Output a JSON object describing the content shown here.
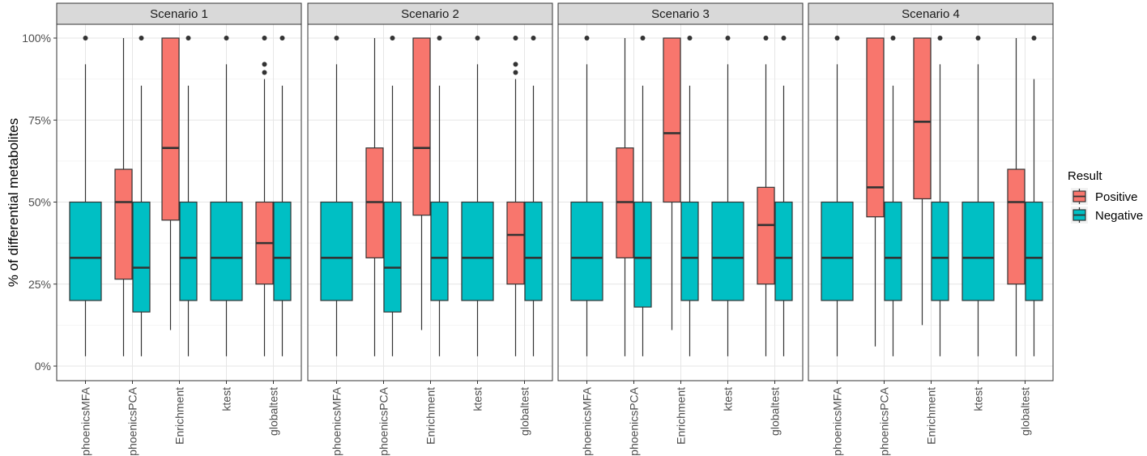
{
  "chart_data": {
    "type": "boxplot",
    "ylabel": "% of differential metabolites",
    "xlabel": "",
    "ylim": [
      0,
      100
    ],
    "y_ticks": [
      0,
      25,
      50,
      75,
      100
    ],
    "y_tick_labels": [
      "0%",
      "25%",
      "50%",
      "75%",
      "100%"
    ],
    "categories": [
      "phoenicsMFA",
      "phoenicsPCA",
      "Enrichment",
      "ktest",
      "globaltest"
    ],
    "legend": {
      "title": "Result",
      "entries": [
        {
          "name": "Positive",
          "color": "#F8766D"
        },
        {
          "name": "Negative",
          "color": "#00BFC4"
        }
      ],
      "position": "right"
    },
    "facets": [
      {
        "title": "Scenario 1",
        "boxes": [
          {
            "category": "phoenicsMFA",
            "group": "Negative",
            "lo": 3,
            "q1": 20,
            "med": 33,
            "q3": 50,
            "hi": 92,
            "outliers": [
              100
            ]
          },
          {
            "category": "phoenicsPCA",
            "group": "Positive",
            "lo": 3,
            "q1": 26.5,
            "med": 50,
            "q3": 60,
            "hi": 100,
            "outliers": []
          },
          {
            "category": "phoenicsPCA",
            "group": "Negative",
            "lo": 3,
            "q1": 16.5,
            "med": 30,
            "q3": 50,
            "hi": 85.5,
            "outliers": [
              100
            ]
          },
          {
            "category": "Enrichment",
            "group": "Positive",
            "lo": 11,
            "q1": 44.5,
            "med": 66.5,
            "q3": 100,
            "hi": 100,
            "outliers": []
          },
          {
            "category": "Enrichment",
            "group": "Negative",
            "lo": 3,
            "q1": 20,
            "med": 33,
            "q3": 50,
            "hi": 85.5,
            "outliers": [
              100
            ]
          },
          {
            "category": "ktest",
            "group": "Negative",
            "lo": 3,
            "q1": 20,
            "med": 33,
            "q3": 50,
            "hi": 92,
            "outliers": [
              100
            ]
          },
          {
            "category": "globaltest",
            "group": "Positive",
            "lo": 3,
            "q1": 25,
            "med": 37.5,
            "q3": 50,
            "hi": 87.5,
            "outliers": [
              89.5,
              92,
              100
            ]
          },
          {
            "category": "globaltest",
            "group": "Negative",
            "lo": 3,
            "q1": 20,
            "med": 33,
            "q3": 50,
            "hi": 85.5,
            "outliers": [
              100
            ]
          }
        ]
      },
      {
        "title": "Scenario 2",
        "boxes": [
          {
            "category": "phoenicsMFA",
            "group": "Negative",
            "lo": 3,
            "q1": 20,
            "med": 33,
            "q3": 50,
            "hi": 92,
            "outliers": [
              100
            ]
          },
          {
            "category": "phoenicsPCA",
            "group": "Positive",
            "lo": 3,
            "q1": 33,
            "med": 50,
            "q3": 66.5,
            "hi": 100,
            "outliers": []
          },
          {
            "category": "phoenicsPCA",
            "group": "Negative",
            "lo": 3,
            "q1": 16.5,
            "med": 30,
            "q3": 50,
            "hi": 85.5,
            "outliers": [
              100
            ]
          },
          {
            "category": "Enrichment",
            "group": "Positive",
            "lo": 11,
            "q1": 46,
            "med": 66.5,
            "q3": 100,
            "hi": 100,
            "outliers": []
          },
          {
            "category": "Enrichment",
            "group": "Negative",
            "lo": 3,
            "q1": 20,
            "med": 33,
            "q3": 50,
            "hi": 85.5,
            "outliers": [
              100
            ]
          },
          {
            "category": "ktest",
            "group": "Negative",
            "lo": 3,
            "q1": 20,
            "med": 33,
            "q3": 50,
            "hi": 92,
            "outliers": [
              100
            ]
          },
          {
            "category": "globaltest",
            "group": "Positive",
            "lo": 3,
            "q1": 25,
            "med": 40,
            "q3": 50,
            "hi": 87.5,
            "outliers": [
              89.5,
              92,
              100
            ]
          },
          {
            "category": "globaltest",
            "group": "Negative",
            "lo": 3,
            "q1": 20,
            "med": 33,
            "q3": 50,
            "hi": 85.5,
            "outliers": [
              100
            ]
          }
        ]
      },
      {
        "title": "Scenario 3",
        "boxes": [
          {
            "category": "phoenicsMFA",
            "group": "Negative",
            "lo": 3,
            "q1": 20,
            "med": 33,
            "q3": 50,
            "hi": 92,
            "outliers": [
              100
            ]
          },
          {
            "category": "phoenicsPCA",
            "group": "Positive",
            "lo": 3,
            "q1": 33,
            "med": 50,
            "q3": 66.5,
            "hi": 100,
            "outliers": []
          },
          {
            "category": "phoenicsPCA",
            "group": "Negative",
            "lo": 3,
            "q1": 18,
            "med": 33,
            "q3": 50,
            "hi": 85.5,
            "outliers": [
              100
            ]
          },
          {
            "category": "Enrichment",
            "group": "Positive",
            "lo": 11,
            "q1": 50,
            "med": 71,
            "q3": 100,
            "hi": 100,
            "outliers": []
          },
          {
            "category": "Enrichment",
            "group": "Negative",
            "lo": 3,
            "q1": 20,
            "med": 33,
            "q3": 50,
            "hi": 85.5,
            "outliers": [
              100
            ]
          },
          {
            "category": "ktest",
            "group": "Negative",
            "lo": 3,
            "q1": 20,
            "med": 33,
            "q3": 50,
            "hi": 92,
            "outliers": [
              100
            ]
          },
          {
            "category": "globaltest",
            "group": "Positive",
            "lo": 3,
            "q1": 25,
            "med": 43,
            "q3": 54.5,
            "hi": 92,
            "outliers": [
              100
            ]
          },
          {
            "category": "globaltest",
            "group": "Negative",
            "lo": 3,
            "q1": 20,
            "med": 33,
            "q3": 50,
            "hi": 85.5,
            "outliers": [
              100
            ]
          }
        ]
      },
      {
        "title": "Scenario 4",
        "boxes": [
          {
            "category": "phoenicsMFA",
            "group": "Negative",
            "lo": 3,
            "q1": 20,
            "med": 33,
            "q3": 50,
            "hi": 92,
            "outliers": [
              100
            ]
          },
          {
            "category": "phoenicsPCA",
            "group": "Positive",
            "lo": 6,
            "q1": 45.5,
            "med": 54.5,
            "q3": 100,
            "hi": 100,
            "outliers": []
          },
          {
            "category": "phoenicsPCA",
            "group": "Negative",
            "lo": 3,
            "q1": 20,
            "med": 33,
            "q3": 50,
            "hi": 85.5,
            "outliers": [
              100
            ]
          },
          {
            "category": "Enrichment",
            "group": "Positive",
            "lo": 12.5,
            "q1": 51,
            "med": 74.5,
            "q3": 100,
            "hi": 100,
            "outliers": []
          },
          {
            "category": "Enrichment",
            "group": "Negative",
            "lo": 3,
            "q1": 20,
            "med": 33,
            "q3": 50,
            "hi": 92,
            "outliers": [
              100
            ]
          },
          {
            "category": "ktest",
            "group": "Negative",
            "lo": 3,
            "q1": 20,
            "med": 33,
            "q3": 50,
            "hi": 92,
            "outliers": [
              100
            ]
          },
          {
            "category": "globaltest",
            "group": "Positive",
            "lo": 3,
            "q1": 25,
            "med": 50,
            "q3": 60,
            "hi": 100,
            "outliers": []
          },
          {
            "category": "globaltest",
            "group": "Negative",
            "lo": 3,
            "q1": 20,
            "med": 33,
            "q3": 50,
            "hi": 87.5,
            "outliers": [
              100
            ]
          }
        ]
      }
    ]
  }
}
